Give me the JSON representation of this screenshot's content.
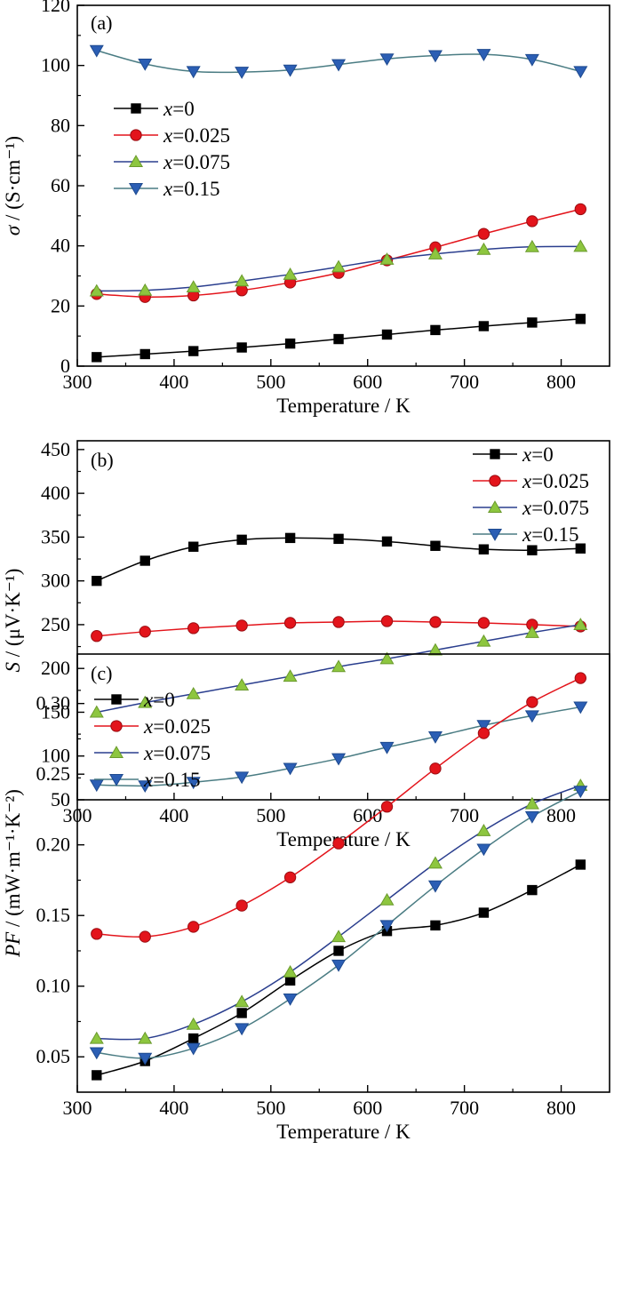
{
  "colors": {
    "x0": "#000000",
    "x0025": "#e3141b",
    "x0075": "#8dc63f",
    "x015": "#4a7c83",
    "marker_x015": "#2b5eb4",
    "line_x0075": "#2a3e8e"
  },
  "chart_data": [
    {
      "type": "line",
      "panel_label": "(a)",
      "xlabel": "Temperature / K",
      "ylabel_symbol": "σ",
      "ylabel_unit": " / (S·cm⁻¹)",
      "xlim": [
        300,
        850
      ],
      "ylim": [
        0,
        120
      ],
      "xticks": [
        300,
        400,
        500,
        600,
        700,
        800
      ],
      "yticks": [
        0,
        20,
        40,
        60,
        80,
        100,
        120
      ],
      "ytick_labels": [
        "0",
        "20",
        "40",
        "60",
        "80",
        "100",
        "120"
      ],
      "legend": "top-left",
      "x": [
        320,
        370,
        420,
        470,
        520,
        570,
        620,
        670,
        720,
        770,
        820
      ],
      "series": [
        {
          "name": "x=0",
          "legend_symbol": "x",
          "legend_rest": "=0",
          "marker": "square",
          "values": [
            3,
            4,
            5,
            6.2,
            7.5,
            9,
            10.5,
            12,
            13.3,
            14.5,
            15.7
          ]
        },
        {
          "name": "x=0.025",
          "legend_symbol": "x",
          "legend_rest": "=0.025",
          "marker": "circle",
          "values": [
            24,
            23,
            23.5,
            25.2,
            27.8,
            31,
            35.2,
            39.5,
            44,
            48.2,
            52.2
          ]
        },
        {
          "name": "x=0.075",
          "legend_symbol": "x",
          "legend_rest": "=0.075",
          "marker": "triangle-up",
          "values": [
            25,
            25.2,
            26.3,
            28.3,
            30.5,
            33,
            35.5,
            37.3,
            38.8,
            39.7,
            39.8
          ]
        },
        {
          "name": "x=0.15",
          "legend_symbol": "x",
          "legend_rest": "=0.15",
          "marker": "triangle-down",
          "values": [
            105,
            100.5,
            98,
            97.8,
            98.5,
            100.3,
            102.2,
            103.3,
            103.7,
            102,
            98
          ]
        }
      ]
    },
    {
      "type": "line",
      "panel_label": "(b)",
      "xlabel": "Temperature / K",
      "ylabel_symbol": "S",
      "ylabel_unit": " / (μV·K⁻¹)",
      "xlim": [
        300,
        850
      ],
      "ylim": [
        50,
        460
      ],
      "xticks": [
        300,
        400,
        500,
        600,
        700,
        800
      ],
      "yticks": [
        50,
        100,
        150,
        200,
        250,
        300,
        350,
        400,
        450
      ],
      "ytick_labels": [
        "50",
        "100",
        "150",
        "200",
        "250",
        "300",
        "350",
        "400",
        "450"
      ],
      "legend": "top-right",
      "x": [
        320,
        370,
        420,
        470,
        520,
        570,
        620,
        670,
        720,
        770,
        820
      ],
      "series": [
        {
          "name": "x=0",
          "legend_symbol": "x",
          "legend_rest": "=0",
          "marker": "square",
          "values": [
            300,
            323,
            339,
            347,
            349,
            348,
            345,
            340,
            336,
            335,
            337
          ]
        },
        {
          "name": "x=0.025",
          "legend_symbol": "x",
          "legend_rest": "=0.025",
          "marker": "circle",
          "values": [
            237,
            242,
            246,
            249,
            252,
            253,
            254,
            253,
            252,
            250,
            248
          ]
        },
        {
          "name": "x=0.075",
          "legend_symbol": "x",
          "legend_rest": "=0.075",
          "marker": "triangle-up",
          "values": [
            150,
            161,
            171,
            181,
            191,
            202,
            211,
            221,
            231,
            241,
            250
          ]
        },
        {
          "name": "x=0.15",
          "legend_symbol": "x",
          "legend_rest": "=0.15",
          "marker": "triangle-down",
          "values": [
            67,
            66,
            70,
            76,
            86,
            97,
            110,
            122,
            135,
            146,
            156
          ]
        }
      ]
    },
    {
      "type": "line",
      "panel_label": "(c)",
      "xlabel": "Temperature / K",
      "ylabel_symbol": "PF",
      "ylabel_unit": " / (mW·m⁻¹·K⁻²)",
      "xlim": [
        300,
        850
      ],
      "ylim": [
        0.025,
        0.335
      ],
      "xticks": [
        300,
        400,
        500,
        600,
        700,
        800
      ],
      "yticks": [
        0.05,
        0.1,
        0.15,
        0.2,
        0.25,
        0.3
      ],
      "ytick_labels": [
        "0.05",
        "0.10",
        "0.15",
        "0.20",
        "0.25",
        "0.30"
      ],
      "legend": "top-left",
      "x": [
        320,
        370,
        420,
        470,
        520,
        570,
        620,
        670,
        720,
        770,
        820
      ],
      "series": [
        {
          "name": "x=0",
          "legend_symbol": "x",
          "legend_rest": "=0",
          "marker": "square",
          "values": [
            0.037,
            0.047,
            0.063,
            0.081,
            0.104,
            0.125,
            0.139,
            0.143,
            0.152,
            0.168,
            0.186
          ]
        },
        {
          "name": "x=0.025",
          "legend_symbol": "x",
          "legend_rest": "=0.025",
          "marker": "circle",
          "values": [
            0.137,
            0.135,
            0.142,
            0.157,
            0.177,
            0.201,
            0.227,
            0.254,
            0.279,
            0.301,
            0.318
          ]
        },
        {
          "name": "x=0.075",
          "legend_symbol": "x",
          "legend_rest": "=0.075",
          "marker": "triangle-up",
          "values": [
            0.063,
            0.063,
            0.073,
            0.089,
            0.11,
            0.135,
            0.161,
            0.187,
            0.21,
            0.229,
            0.242
          ]
        },
        {
          "name": "x=0.15",
          "legend_symbol": "x",
          "legend_rest": "=0.15",
          "marker": "triangle-down",
          "values": [
            0.053,
            0.049,
            0.056,
            0.07,
            0.091,
            0.115,
            0.143,
            0.171,
            0.197,
            0.22,
            0.238
          ]
        }
      ]
    }
  ]
}
